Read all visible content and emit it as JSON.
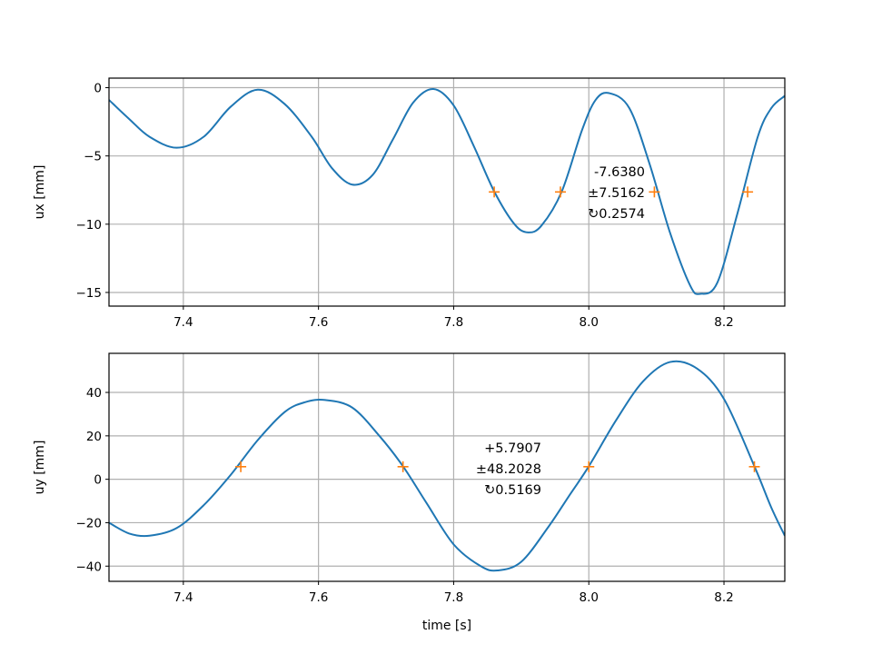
{
  "colors": {
    "signal": "#1f77b4",
    "marker": "#ff7f0e",
    "grid": "#b0b0b0"
  },
  "chart_data": [
    {
      "type": "line",
      "xlabel": "",
      "ylabel": "ux [mm]",
      "xlim": [
        7.29,
        8.29
      ],
      "ylim": [
        -16.0,
        0.7
      ],
      "grid": true,
      "x_ticks": [
        7.4,
        7.6,
        7.8,
        8.0,
        8.2
      ],
      "x_tick_labels": [
        "7.4",
        "7.6",
        "7.8",
        "8.0",
        "8.2"
      ],
      "y_ticks": [
        0,
        -5,
        -10,
        -15
      ],
      "y_tick_labels": [
        "0",
        "−5",
        "−10",
        "−15"
      ],
      "series": [
        {
          "x": [
            7.29,
            7.32,
            7.35,
            7.39,
            7.43,
            7.47,
            7.51,
            7.55,
            7.59,
            7.62,
            7.65,
            7.68,
            7.71,
            7.74,
            7.77,
            7.8,
            7.83,
            7.86,
            7.89,
            7.91,
            7.93,
            7.96,
            7.99,
            8.01,
            8.03,
            8.06,
            8.09,
            8.12,
            8.15,
            8.165,
            8.19,
            8.22,
            8.25,
            8.27,
            8.29
          ],
          "y": [
            -0.9,
            -2.3,
            -3.6,
            -4.4,
            -3.6,
            -1.4,
            -0.15,
            -1.2,
            -3.6,
            -5.9,
            -7.1,
            -6.4,
            -3.8,
            -1.1,
            -0.1,
            -1.3,
            -4.3,
            -7.6,
            -10.0,
            -10.6,
            -10.1,
            -7.6,
            -3.1,
            -0.9,
            -0.4,
            -1.5,
            -5.6,
            -10.6,
            -14.5,
            -15.1,
            -14.3,
            -9.2,
            -3.6,
            -1.5,
            -0.6
          ]
        }
      ],
      "markers": {
        "x": [
          7.86,
          7.958,
          8.097,
          8.235
        ],
        "y": [
          -7.638,
          -7.638,
          -7.638,
          -7.638
        ]
      },
      "annotation": [
        "-7.6380",
        "±7.5162",
        "↻0.2574"
      ]
    },
    {
      "type": "line",
      "xlabel": "time [s]",
      "ylabel": "uy [mm]",
      "xlim": [
        7.29,
        8.29
      ],
      "ylim": [
        -47,
        58
      ],
      "grid": true,
      "x_ticks": [
        7.4,
        7.6,
        7.8,
        8.0,
        8.2
      ],
      "x_tick_labels": [
        "7.4",
        "7.6",
        "7.8",
        "8.0",
        "8.2"
      ],
      "y_ticks": [
        40,
        20,
        0,
        -20,
        -40
      ],
      "y_tick_labels": [
        "40",
        "20",
        "0",
        "−20",
        "−40"
      ],
      "series": [
        {
          "x": [
            7.29,
            7.32,
            7.35,
            7.39,
            7.43,
            7.47,
            7.51,
            7.55,
            7.58,
            7.61,
            7.65,
            7.69,
            7.725,
            7.76,
            7.8,
            7.84,
            7.865,
            7.9,
            7.94,
            7.97,
            8.0,
            8.04,
            8.08,
            8.12,
            8.16,
            8.2,
            8.245,
            8.27,
            8.29
          ],
          "y": [
            -20,
            -25,
            -26,
            -22.5,
            -12,
            2,
            18,
            31,
            35.5,
            36.5,
            33,
            20,
            6,
            -11,
            -30,
            -40,
            -42,
            -38,
            -22,
            -8,
            6,
            27,
            45,
            54,
            51,
            37,
            6,
            -13,
            -26
          ]
        }
      ],
      "markers": {
        "x": [
          7.485,
          7.725,
          8.0,
          8.245
        ],
        "y": [
          5.79,
          5.79,
          5.79,
          5.79
        ]
      },
      "annotation": [
        "+5.7907",
        "±48.2028",
        "↻0.5169"
      ]
    }
  ]
}
